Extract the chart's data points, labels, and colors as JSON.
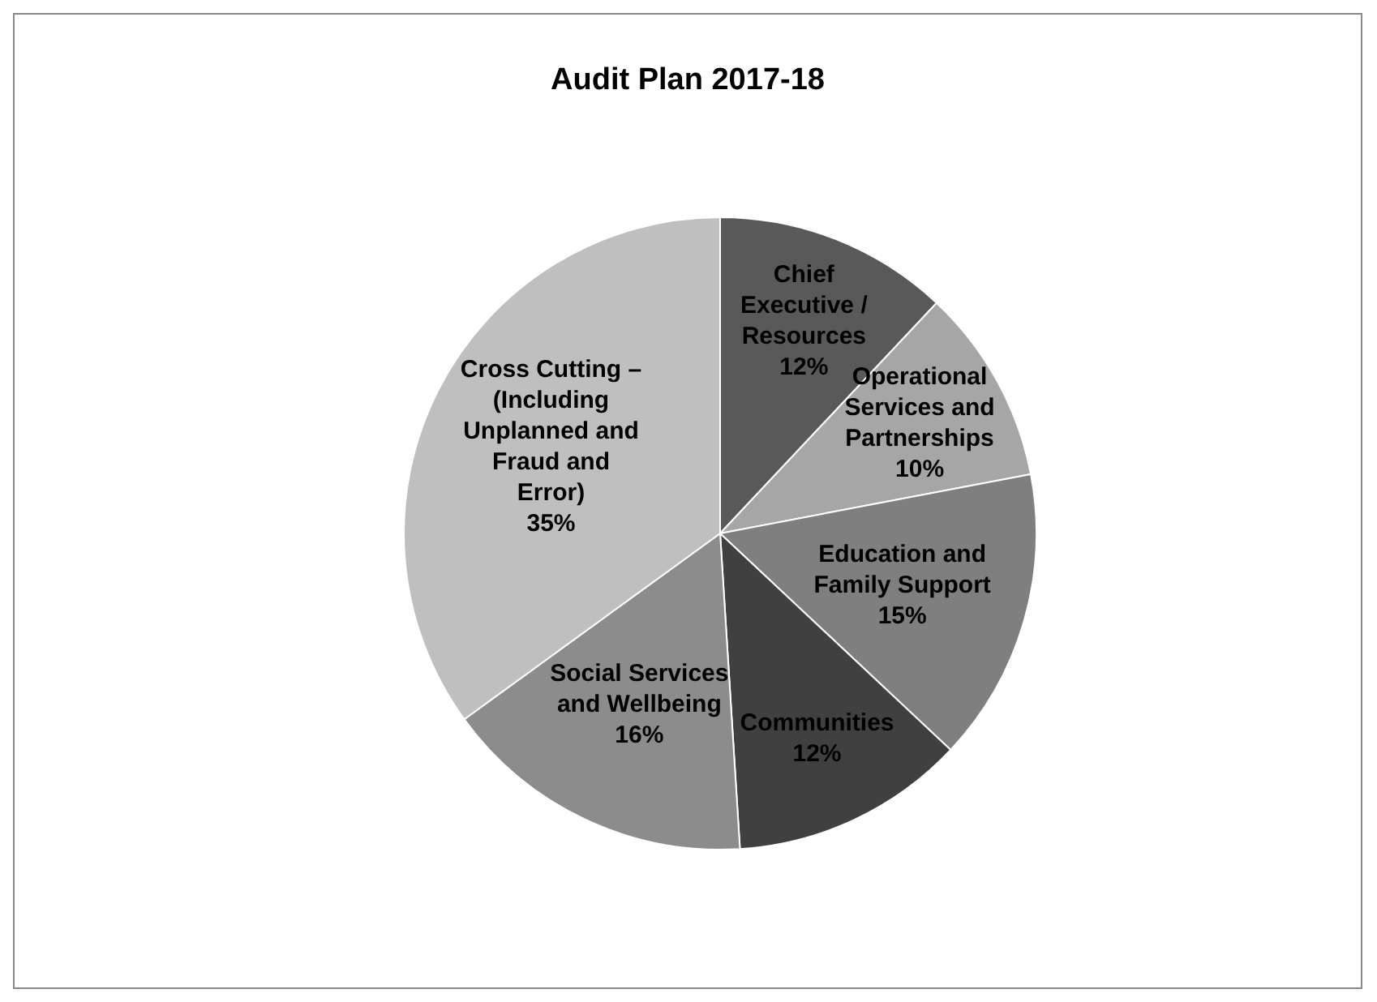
{
  "chart_data": {
    "type": "pie",
    "title": "Audit Plan 2017-18",
    "categories": [
      "Chief Executive / Resources",
      "Operational Services and Partnerships",
      "Education and Family Support",
      "Communities",
      "Social Services and Wellbeing",
      "Cross Cutting – (Including Unplanned and Fraud and Error)"
    ],
    "values": [
      12,
      10,
      15,
      12,
      16,
      35
    ],
    "value_labels": [
      "12%",
      "10%",
      "15%",
      "12%",
      "16%",
      "35%"
    ],
    "colors": [
      "#595959",
      "#a6a6a6",
      "#7f7f7f",
      "#404040",
      "#8c8c8c",
      "#bfbfbf"
    ],
    "legend": false
  }
}
